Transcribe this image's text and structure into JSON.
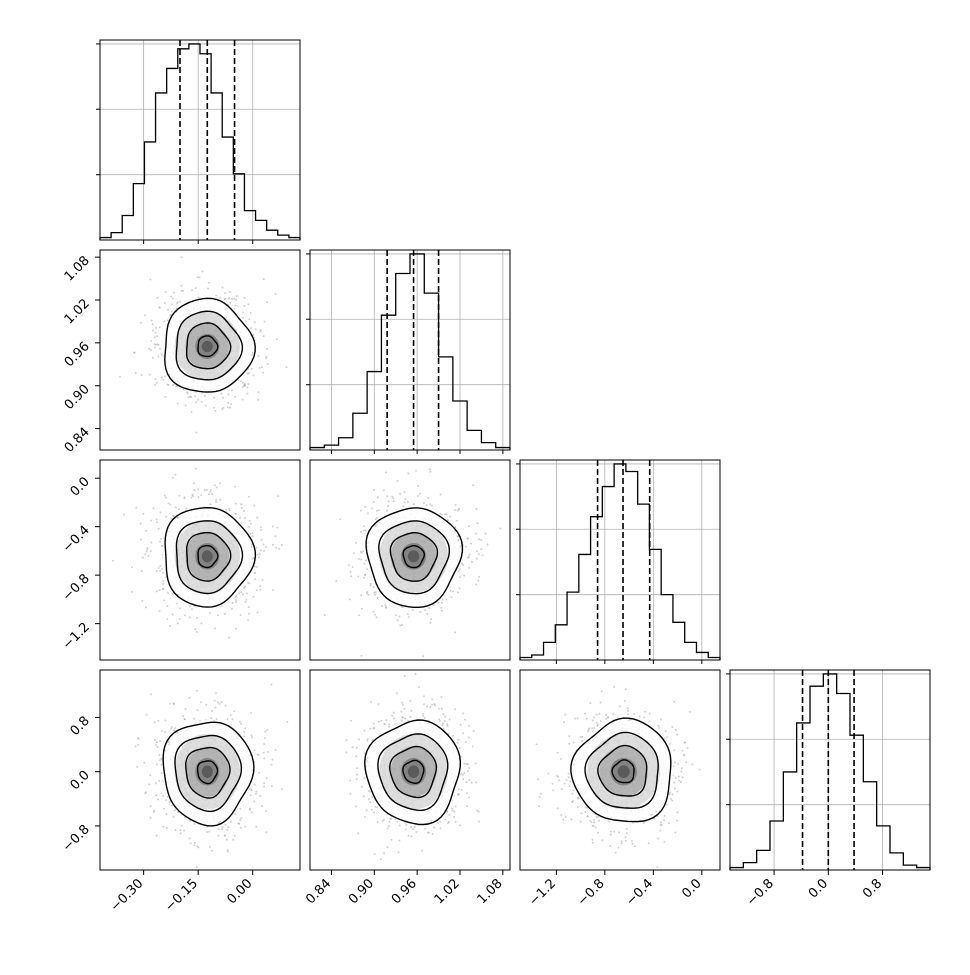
{
  "chart_data": {
    "type": "corner",
    "grid": true,
    "colors": {
      "line": "#000000",
      "grid": "#b0b0b0",
      "points": "#a9a9a9",
      "density": "#4a4a4a"
    },
    "params": [
      {
        "ticks": [
          -0.3,
          -0.15,
          0.0
        ],
        "tick_labels": [
          "−0.30",
          "−0.15",
          "0.00"
        ],
        "range": [
          -0.42,
          0.13
        ],
        "quantiles": [
          -0.2,
          -0.125,
          -0.05
        ],
        "mean": -0.125,
        "sd": 0.06
      },
      {
        "ticks": [
          0.84,
          0.9,
          0.96,
          1.02,
          1.08
        ],
        "tick_labels": [
          "0.84",
          "0.90",
          "0.96",
          "1.02",
          "1.08"
        ],
        "range": [
          0.81,
          1.09
        ],
        "quantiles": [
          0.918,
          0.955,
          0.99
        ],
        "mean": 0.955,
        "sd": 0.032
      },
      {
        "ticks": [
          -1.2,
          -0.8,
          -0.4,
          0.0
        ],
        "tick_labels": [
          "−1.2",
          "−0.8",
          "−0.4",
          "0.0"
        ],
        "range": [
          -1.5,
          0.15
        ],
        "quantiles": [
          -0.86,
          -0.65,
          -0.43
        ],
        "mean": -0.645,
        "sd": 0.2
      },
      {
        "ticks": [
          -0.8,
          0.0,
          0.8
        ],
        "tick_labels": [
          "−0.8",
          "0.0",
          "0.8"
        ],
        "range": [
          -1.45,
          1.5
        ],
        "quantiles": [
          -0.38,
          0.0,
          0.38
        ],
        "mean": 0.0,
        "sd": 0.37
      }
    ],
    "histograms": [
      {
        "param": 0,
        "counts": [
          1,
          3,
          10,
          23,
          40,
          60,
          70,
          78,
          80,
          76,
          60,
          42,
          27,
          12,
          8,
          4,
          2,
          1
        ]
      },
      {
        "param": 1,
        "counts": [
          1,
          2,
          5,
          15,
          32,
          55,
          72,
          80,
          64,
          38,
          20,
          8,
          3,
          1
        ]
      },
      {
        "param": 2,
        "counts": [
          1,
          2,
          7,
          14,
          27,
          42,
          57,
          69,
          78,
          75,
          62,
          44,
          26,
          15,
          7,
          3,
          1
        ]
      },
      {
        "param": 3,
        "counts": [
          1,
          3,
          8,
          20,
          40,
          60,
          75,
          80,
          72,
          55,
          36,
          18,
          7,
          2,
          1
        ]
      }
    ]
  }
}
